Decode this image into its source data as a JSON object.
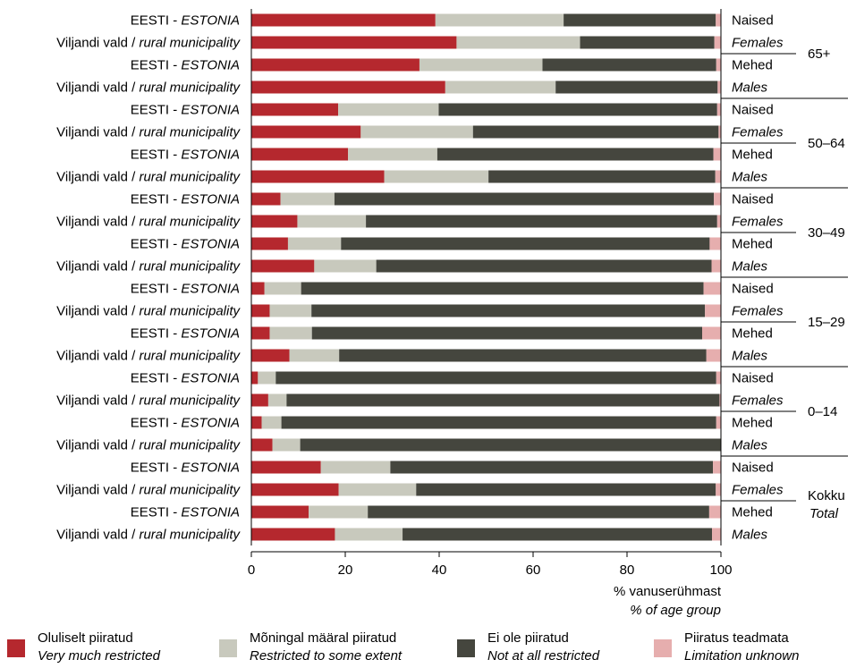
{
  "chart_data": {
    "type": "bar",
    "orientation": "horizontal",
    "stacked": true,
    "xlim": [
      0,
      100
    ],
    "xticks": [
      0,
      20,
      40,
      60,
      80,
      100
    ],
    "xlabel": "% vanuserühmast",
    "xlabel_en": "% of age group",
    "row_labels": {
      "estonia_et": "EESTI - ",
      "estonia_en": "ESTONIA",
      "viljandi_et": "Viljandi vald / ",
      "viljandi_en": "rural municipality"
    },
    "sex_labels": {
      "female_et": "Naised",
      "female_en": "Females",
      "male_et": "Mehed",
      "male_en": "Males"
    },
    "groups": [
      {
        "label": "65+",
        "label_en": "",
        "rows": [
          {
            "sex": "F",
            "region": "estonia",
            "values": [
              39.2,
              27.3,
              32.4,
              1.1
            ]
          },
          {
            "sex": "F",
            "region": "viljandi",
            "values": [
              43.7,
              26.3,
              28.6,
              1.4
            ]
          },
          {
            "sex": "M",
            "region": "estonia",
            "values": [
              35.8,
              26.2,
              37.0,
              1.0
            ]
          },
          {
            "sex": "M",
            "region": "viljandi",
            "values": [
              41.3,
              23.5,
              34.5,
              0.7
            ]
          }
        ]
      },
      {
        "label": "50–64",
        "label_en": "",
        "rows": [
          {
            "sex": "F",
            "region": "estonia",
            "values": [
              18.5,
              21.4,
              59.3,
              0.8
            ]
          },
          {
            "sex": "F",
            "region": "viljandi",
            "values": [
              23.3,
              23.9,
              52.3,
              0.5
            ]
          },
          {
            "sex": "M",
            "region": "estonia",
            "values": [
              20.6,
              19.0,
              58.8,
              1.6
            ]
          },
          {
            "sex": "M",
            "region": "viljandi",
            "values": [
              28.3,
              22.2,
              48.3,
              1.2
            ]
          }
        ]
      },
      {
        "label": "30–49",
        "label_en": "",
        "rows": [
          {
            "sex": "F",
            "region": "estonia",
            "values": [
              6.2,
              11.5,
              80.8,
              1.5
            ]
          },
          {
            "sex": "F",
            "region": "viljandi",
            "values": [
              9.8,
              14.6,
              74.8,
              0.8
            ]
          },
          {
            "sex": "M",
            "region": "estonia",
            "values": [
              7.8,
              11.3,
              78.5,
              2.4
            ]
          },
          {
            "sex": "M",
            "region": "viljandi",
            "values": [
              13.4,
              13.2,
              71.4,
              2.0
            ]
          }
        ]
      },
      {
        "label": "15–29",
        "label_en": "",
        "rows": [
          {
            "sex": "F",
            "region": "estonia",
            "values": [
              2.8,
              7.8,
              85.7,
              3.7
            ]
          },
          {
            "sex": "F",
            "region": "viljandi",
            "values": [
              3.9,
              8.9,
              83.8,
              3.4
            ]
          },
          {
            "sex": "M",
            "region": "estonia",
            "values": [
              3.9,
              9.0,
              83.1,
              4.0
            ]
          },
          {
            "sex": "M",
            "region": "viljandi",
            "values": [
              8.1,
              10.6,
              78.2,
              3.1
            ]
          }
        ]
      },
      {
        "label": "0–14",
        "label_en": "",
        "rows": [
          {
            "sex": "F",
            "region": "estonia",
            "values": [
              1.4,
              3.8,
              93.8,
              1.0
            ]
          },
          {
            "sex": "F",
            "region": "viljandi",
            "values": [
              3.6,
              3.9,
              92.2,
              0.3
            ]
          },
          {
            "sex": "M",
            "region": "estonia",
            "values": [
              2.2,
              4.2,
              92.6,
              1.0
            ]
          },
          {
            "sex": "M",
            "region": "viljandi",
            "values": [
              4.5,
              5.9,
              89.6,
              0.0
            ]
          }
        ]
      },
      {
        "label": "Kokku",
        "label_en": "Total",
        "rows": [
          {
            "sex": "F",
            "region": "estonia",
            "values": [
              14.8,
              14.8,
              68.7,
              1.7
            ]
          },
          {
            "sex": "F",
            "region": "viljandi",
            "values": [
              18.6,
              16.5,
              63.8,
              1.1
            ]
          },
          {
            "sex": "M",
            "region": "estonia",
            "values": [
              12.2,
              12.6,
              72.7,
              2.5
            ]
          },
          {
            "sex": "M",
            "region": "viljandi",
            "values": [
              17.8,
              14.4,
              65.9,
              1.9
            ]
          }
        ]
      }
    ],
    "series": [
      {
        "name": "Oluliselt piiratud",
        "name_en": "Very much restricted",
        "color": "#b5282e"
      },
      {
        "name": "Mõningal määral piiratud",
        "name_en": "Restricted to some extent",
        "color": "#c8c9bd"
      },
      {
        "name": "Ei ole piiratud",
        "name_en": "Not at all restricted",
        "color": "#45463e"
      },
      {
        "name": "Piiratus teadmata",
        "name_en": "Limitation unknown",
        "color": "#e6aeae"
      }
    ],
    "legend_position": "bottom"
  }
}
